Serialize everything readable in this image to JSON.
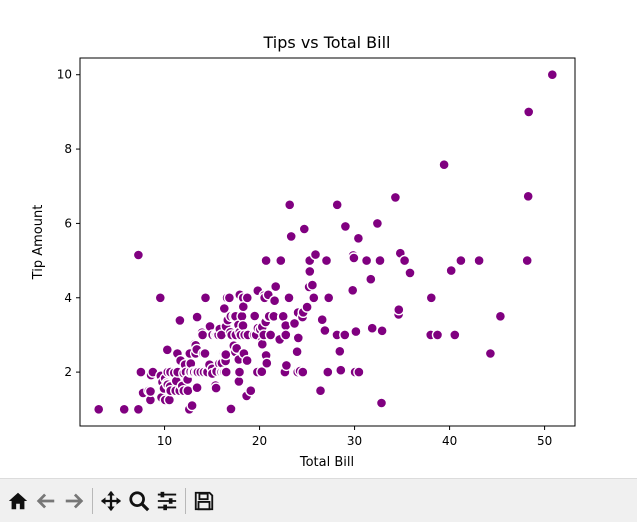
{
  "chart_data": {
    "type": "scatter",
    "title": "Tips vs Total Bill",
    "xlabel": "Total Bill",
    "ylabel": "Tip Amount",
    "xlim": [
      1.1,
      53.2
    ],
    "ylim": [
      0.55,
      10.45
    ],
    "xticks": [
      10,
      20,
      30,
      40,
      50
    ],
    "yticks": [
      2,
      4,
      6,
      8,
      10
    ],
    "grid": false,
    "marker_color": "#800080",
    "marker_edge_color": "#ffffff",
    "points": [
      [
        3.07,
        1.0
      ],
      [
        5.75,
        1.0
      ],
      [
        7.25,
        1.0
      ],
      [
        12.6,
        1.0
      ],
      [
        16.99,
        1.01
      ],
      [
        7.25,
        5.15
      ],
      [
        9.55,
        4.0
      ],
      [
        7.51,
        2.0
      ],
      [
        7.74,
        1.44
      ],
      [
        8.35,
        1.5
      ],
      [
        8.51,
        1.25
      ],
      [
        8.52,
        1.48
      ],
      [
        8.58,
        1.92
      ],
      [
        8.77,
        2.0
      ],
      [
        9.6,
        1.9
      ],
      [
        9.68,
        1.32
      ],
      [
        9.78,
        1.73
      ],
      [
        9.94,
        1.56
      ],
      [
        10.07,
        1.83
      ],
      [
        10.07,
        1.25
      ],
      [
        10.27,
        1.71
      ],
      [
        10.29,
        2.6
      ],
      [
        10.33,
        1.67
      ],
      [
        10.34,
        1.66
      ],
      [
        10.34,
        2.0
      ],
      [
        10.51,
        1.25
      ],
      [
        10.59,
        1.61
      ],
      [
        10.63,
        2.0
      ],
      [
        10.65,
        1.5
      ],
      [
        11.02,
        1.98
      ],
      [
        11.17,
        1.5
      ],
      [
        11.24,
        1.76
      ],
      [
        11.35,
        2.5
      ],
      [
        11.38,
        2.0
      ],
      [
        11.59,
        1.5
      ],
      [
        11.61,
        3.39
      ],
      [
        11.69,
        2.31
      ],
      [
        11.87,
        1.63
      ],
      [
        12.02,
        1.97
      ],
      [
        12.03,
        1.5
      ],
      [
        12.16,
        2.2
      ],
      [
        12.26,
        2.0
      ],
      [
        12.43,
        1.8
      ],
      [
        12.46,
        1.5
      ],
      [
        12.48,
        2.52
      ],
      [
        12.54,
        2.5
      ],
      [
        12.66,
        2.5
      ],
      [
        12.69,
        2.0
      ],
      [
        12.74,
        2.01
      ],
      [
        12.76,
        2.23
      ],
      [
        12.9,
        1.1
      ],
      [
        13.0,
        2.0
      ],
      [
        13.03,
        2.0
      ],
      [
        13.13,
        2.0
      ],
      [
        13.16,
        2.75
      ],
      [
        13.27,
        2.5
      ],
      [
        13.28,
        2.72
      ],
      [
        13.37,
        2.0
      ],
      [
        13.39,
        2.61
      ],
      [
        13.42,
        1.58
      ],
      [
        13.42,
        3.48
      ],
      [
        13.51,
        2.0
      ],
      [
        13.81,
        2.0
      ],
      [
        13.94,
        3.06
      ],
      [
        14.0,
        3.0
      ],
      [
        14.07,
        2.5
      ],
      [
        14.15,
        2.0
      ],
      [
        14.26,
        2.5
      ],
      [
        14.31,
        4.0
      ],
      [
        14.48,
        2.0
      ],
      [
        14.52,
        2.0
      ],
      [
        14.73,
        2.2
      ],
      [
        14.78,
        3.23
      ],
      [
        15.01,
        2.09
      ],
      [
        15.04,
        1.96
      ],
      [
        15.06,
        3.0
      ],
      [
        15.36,
        1.64
      ],
      [
        15.38,
        3.0
      ],
      [
        15.42,
        1.57
      ],
      [
        15.48,
        2.02
      ],
      [
        15.53,
        3.0
      ],
      [
        15.69,
        3.0
      ],
      [
        15.77,
        2.23
      ],
      [
        15.81,
        3.16
      ],
      [
        15.95,
        2.0
      ],
      [
        15.98,
        2.03
      ],
      [
        15.98,
        3.0
      ],
      [
        16.0,
        2.0
      ],
      [
        16.04,
        2.24
      ],
      [
        16.21,
        2.0
      ],
      [
        16.27,
        2.5
      ],
      [
        16.29,
        3.71
      ],
      [
        16.31,
        2.0
      ],
      [
        16.4,
        2.5
      ],
      [
        16.43,
        2.3
      ],
      [
        16.45,
        2.47
      ],
      [
        16.47,
        3.23
      ],
      [
        16.49,
        2.0
      ],
      [
        16.58,
        4.0
      ],
      [
        16.66,
        3.4
      ],
      [
        16.82,
        4.0
      ],
      [
        16.93,
        3.07
      ],
      [
        16.97,
        3.5
      ],
      [
        16.99,
        1.01
      ],
      [
        17.07,
        3.0
      ],
      [
        17.29,
        2.71
      ],
      [
        17.31,
        3.5
      ],
      [
        17.46,
        2.54
      ],
      [
        17.47,
        3.5
      ],
      [
        17.51,
        3.0
      ],
      [
        17.59,
        2.64
      ],
      [
        17.78,
        3.27
      ],
      [
        17.81,
        2.34
      ],
      [
        17.82,
        1.75
      ],
      [
        17.89,
        2.0
      ],
      [
        17.92,
        4.08
      ],
      [
        17.92,
        3.08
      ],
      [
        18.04,
        3.0
      ],
      [
        18.15,
        3.5
      ],
      [
        18.24,
        3.76
      ],
      [
        18.26,
        3.25
      ],
      [
        18.28,
        4.0
      ],
      [
        18.29,
        3.76
      ],
      [
        18.35,
        2.5
      ],
      [
        18.43,
        3.0
      ],
      [
        18.64,
        1.36
      ],
      [
        18.69,
        2.31
      ],
      [
        18.71,
        4.0
      ],
      [
        18.78,
        3.0
      ],
      [
        19.08,
        1.5
      ],
      [
        19.44,
        3.0
      ],
      [
        19.49,
        3.51
      ],
      [
        19.65,
        3.0
      ],
      [
        19.77,
        2.0
      ],
      [
        19.81,
        4.19
      ],
      [
        19.82,
        3.18
      ],
      [
        20.08,
        3.15
      ],
      [
        20.23,
        2.01
      ],
      [
        20.27,
        2.83
      ],
      [
        20.29,
        2.75
      ],
      [
        20.29,
        3.21
      ],
      [
        20.45,
        3.0
      ],
      [
        20.49,
        4.06
      ],
      [
        20.53,
        4.0
      ],
      [
        20.65,
        3.35
      ],
      [
        20.69,
        2.45
      ],
      [
        20.69,
        5.0
      ],
      [
        20.76,
        2.24
      ],
      [
        20.9,
        3.5
      ],
      [
        20.92,
        4.08
      ],
      [
        21.01,
        3.5
      ],
      [
        21.16,
        3.0
      ],
      [
        21.5,
        3.5
      ],
      [
        21.58,
        3.92
      ],
      [
        21.7,
        4.3
      ],
      [
        22.12,
        2.88
      ],
      [
        22.23,
        5.0
      ],
      [
        22.42,
        3.48
      ],
      [
        22.49,
        3.5
      ],
      [
        22.67,
        2.0
      ],
      [
        22.75,
        3.25
      ],
      [
        22.76,
        3.0
      ],
      [
        22.82,
        2.18
      ],
      [
        23.1,
        4.0
      ],
      [
        23.17,
        6.5
      ],
      [
        23.33,
        5.65
      ],
      [
        23.68,
        3.31
      ],
      [
        23.95,
        2.55
      ],
      [
        24.01,
        2.0
      ],
      [
        24.06,
        3.6
      ],
      [
        24.08,
        2.92
      ],
      [
        24.27,
        2.03
      ],
      [
        24.52,
        3.48
      ],
      [
        24.55,
        2.0
      ],
      [
        24.59,
        3.61
      ],
      [
        24.71,
        5.85
      ],
      [
        25.0,
        3.75
      ],
      [
        25.21,
        4.29
      ],
      [
        25.28,
        5.0
      ],
      [
        25.29,
        4.71
      ],
      [
        25.56,
        4.34
      ],
      [
        25.71,
        4.0
      ],
      [
        25.89,
        5.16
      ],
      [
        26.41,
        1.5
      ],
      [
        26.59,
        3.41
      ],
      [
        26.86,
        3.14
      ],
      [
        26.88,
        3.12
      ],
      [
        27.05,
        5.0
      ],
      [
        27.18,
        2.0
      ],
      [
        27.2,
        4.0
      ],
      [
        27.28,
        4.0
      ],
      [
        28.15,
        3.0
      ],
      [
        28.17,
        6.5
      ],
      [
        28.44,
        2.56
      ],
      [
        28.55,
        2.05
      ],
      [
        28.97,
        3.0
      ],
      [
        29.03,
        5.92
      ],
      [
        29.8,
        4.2
      ],
      [
        29.85,
        5.14
      ],
      [
        29.93,
        5.07
      ],
      [
        30.06,
        2.0
      ],
      [
        30.14,
        3.09
      ],
      [
        30.4,
        5.6
      ],
      [
        30.46,
        2.0
      ],
      [
        31.27,
        5.0
      ],
      [
        31.71,
        4.5
      ],
      [
        31.85,
        3.18
      ],
      [
        32.4,
        6.0
      ],
      [
        32.68,
        5.0
      ],
      [
        32.83,
        1.17
      ],
      [
        32.9,
        3.11
      ],
      [
        34.3,
        6.7
      ],
      [
        34.63,
        3.55
      ],
      [
        34.65,
        3.68
      ],
      [
        34.81,
        5.2
      ],
      [
        35.26,
        5.0
      ],
      [
        35.83,
        4.67
      ],
      [
        38.01,
        3.0
      ],
      [
        38.07,
        4.0
      ],
      [
        38.73,
        3.0
      ],
      [
        39.42,
        7.58
      ],
      [
        40.17,
        4.73
      ],
      [
        40.55,
        3.0
      ],
      [
        41.19,
        5.0
      ],
      [
        43.11,
        5.0
      ],
      [
        44.3,
        2.5
      ],
      [
        45.35,
        3.5
      ],
      [
        48.17,
        5.0
      ],
      [
        48.27,
        6.73
      ],
      [
        48.33,
        9.0
      ],
      [
        50.81,
        10.0
      ]
    ]
  },
  "toolbar": {
    "buttons": [
      {
        "name": "home-button",
        "icon": "home-icon"
      },
      {
        "name": "back-button",
        "icon": "back-arrow-icon"
      },
      {
        "name": "forward-button",
        "icon": "forward-arrow-icon"
      },
      {
        "name": "pan-button",
        "icon": "move-icon"
      },
      {
        "name": "zoom-button",
        "icon": "magnifier-icon"
      },
      {
        "name": "configure-subplots-button",
        "icon": "sliders-icon"
      },
      {
        "name": "save-button",
        "icon": "floppy-disk-icon"
      }
    ]
  }
}
